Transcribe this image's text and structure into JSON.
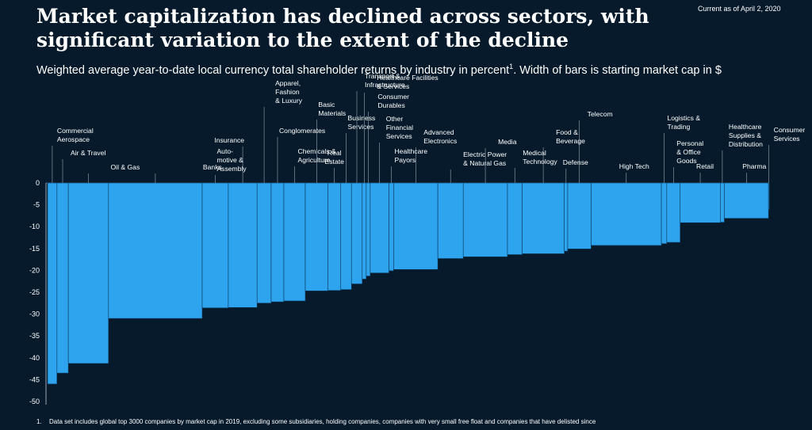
{
  "header": {
    "title": "Market capitalization has declined across sectors, with significant variation to the extent of the decline",
    "subtitle": "Weighted average year-to-date local currency total shareholder returns by industry in percent",
    "subtitle_sup": "1",
    "subtitle_tail": ". Width of bars is starting market cap in $",
    "as_of": "Current as of April 2, 2020"
  },
  "footnote": {
    "number": "1.",
    "text": "Data set includes global top 3000 companies by market cap in 2019, excluding some subsidiaries, holding companies, companies with very small free float and companies that have delisted since"
  },
  "colors": {
    "background": "#061a2b",
    "bar": "#2ea3ee",
    "bar_edge": "#0b3a5c",
    "text": "#ffffff",
    "axis": "#9aa7b2"
  },
  "chart_data": {
    "type": "bar",
    "variant": "variable-width (marimekko-style) bars",
    "ylim": [
      -50,
      0
    ],
    "yticks": [
      "0",
      "-5",
      "-10",
      "-15",
      "-20",
      "-25",
      "-30",
      "-35",
      "-40",
      "-45",
      "-50"
    ],
    "grid": false,
    "series": [
      {
        "name": "Commercial Aerospace",
        "value": -46.0,
        "width": 1.4
      },
      {
        "name": "Air & Travel",
        "value": -43.5,
        "width": 1.7
      },
      {
        "name": "Oil & Gas",
        "value": -41.3,
        "width": 6.0
      },
      {
        "name": "Banks",
        "value": -31.0,
        "width": 14.0
      },
      {
        "name": "Auto-motive & Assembly",
        "value": -28.6,
        "width": 3.9
      },
      {
        "name": "Insurance",
        "value": -28.5,
        "width": 4.3
      },
      {
        "name": "Apparel, Fashion & Luxury",
        "value": -27.5,
        "width": 2.1
      },
      {
        "name": "Conglomerates",
        "value": -27.2,
        "width": 1.9
      },
      {
        "name": "Chemicals & Agriculture",
        "value": -27.0,
        "width": 3.2
      },
      {
        "name": "Basic Materials",
        "value": -24.7,
        "width": 3.4
      },
      {
        "name": "Real Estate",
        "value": -24.6,
        "width": 1.9
      },
      {
        "name": "Business Services",
        "value": -24.4,
        "width": 1.6
      },
      {
        "name": "Transport & Infrastructure",
        "value": -23.1,
        "width": 1.6
      },
      {
        "name": "Healthcare Facilities & Services",
        "value": -22.0,
        "width": 0.6
      },
      {
        "name": "Consumer Durables",
        "value": -21.3,
        "width": 0.6
      },
      {
        "name": "Other Financial Services",
        "value": -20.6,
        "width": 2.8
      },
      {
        "name": "Healthcare Payors",
        "value": -20.1,
        "width": 0.7
      },
      {
        "name": "Advanced Electronics",
        "value": -19.8,
        "width": 6.6
      },
      {
        "name": "Electric Power & Natural Gas",
        "value": -17.3,
        "width": 3.8
      },
      {
        "name": "Media",
        "value": -16.9,
        "width": 6.6
      },
      {
        "name": "Medical Technology",
        "value": -16.4,
        "width": 2.2
      },
      {
        "name": "Food & Beverage",
        "value": -16.2,
        "width": 6.3
      },
      {
        "name": "Defense",
        "value": -15.6,
        "width": 0.5
      },
      {
        "name": "Telecom",
        "value": -15.1,
        "width": 3.5
      },
      {
        "name": "High Tech",
        "value": -14.3,
        "width": 10.5
      },
      {
        "name": "Logistics & Trading",
        "value": -13.9,
        "width": 0.8
      },
      {
        "name": "Personal & Office Goods",
        "value": -13.6,
        "width": 2.0
      },
      {
        "name": "Retail",
        "value": -9.1,
        "width": 6.0
      },
      {
        "name": "Healthcare Supplies & Distribution",
        "value": -9.0,
        "width": 0.6
      },
      {
        "name": "Pharma",
        "value": -8.1,
        "width": 6.6
      },
      {
        "name": "Consumer Services",
        "value": -6.1,
        "width": 0.1
      }
    ],
    "category_labels": [
      {
        "text": [
          "Commercial",
          "Aerospace"
        ]
      },
      {
        "text": [
          "Air & Travel"
        ]
      },
      {
        "text": [
          "Oil & Gas"
        ]
      },
      {
        "text": [
          "Banks"
        ]
      },
      {
        "text": [
          "Auto-",
          "motive &",
          "Assembly"
        ]
      },
      {
        "text": [
          "Insurance"
        ]
      },
      {
        "text": [
          "Apparel,",
          "Fashion",
          "& Luxury"
        ]
      },
      {
        "text": [
          "Conglomerates"
        ]
      },
      {
        "text": [
          "Chemicals &",
          "Agriculture"
        ]
      },
      {
        "text": [
          "Basic",
          "Materials"
        ]
      },
      {
        "text": [
          "Real",
          "Estate"
        ]
      },
      {
        "text": [
          "Business",
          "Services"
        ]
      },
      {
        "text": [
          "Transport &",
          "Infrastructure"
        ]
      },
      {
        "text": [
          "Healthcare Facilities",
          "& Services"
        ]
      },
      {
        "text": [
          "Consumer",
          "Durables"
        ]
      },
      {
        "text": [
          "Other",
          "Financial",
          "Services"
        ]
      },
      {
        "text": [
          "Healthcare",
          "Payors"
        ]
      },
      {
        "text": [
          "Advanced",
          "Electronics"
        ]
      },
      {
        "text": [
          "Electric Power",
          "& Natural Gas"
        ]
      },
      {
        "text": [
          "Media"
        ]
      },
      {
        "text": [
          "Medical",
          "Technology"
        ]
      },
      {
        "text": [
          "Food &",
          "Beverage"
        ]
      },
      {
        "text": [
          "Defense"
        ]
      },
      {
        "text": [
          "Telecom"
        ]
      },
      {
        "text": [
          "High Tech"
        ]
      },
      {
        "text": [
          "Logistics &",
          "Trading"
        ]
      },
      {
        "text": [
          "Personal",
          "& Office",
          "Goods"
        ]
      },
      {
        "text": [
          "Retail"
        ]
      },
      {
        "text": [
          "Healthcare",
          "Supplies &",
          "Distribution"
        ]
      },
      {
        "text": [
          "Pharma"
        ]
      },
      {
        "text": [
          "Consumer",
          "Services"
        ]
      }
    ]
  }
}
